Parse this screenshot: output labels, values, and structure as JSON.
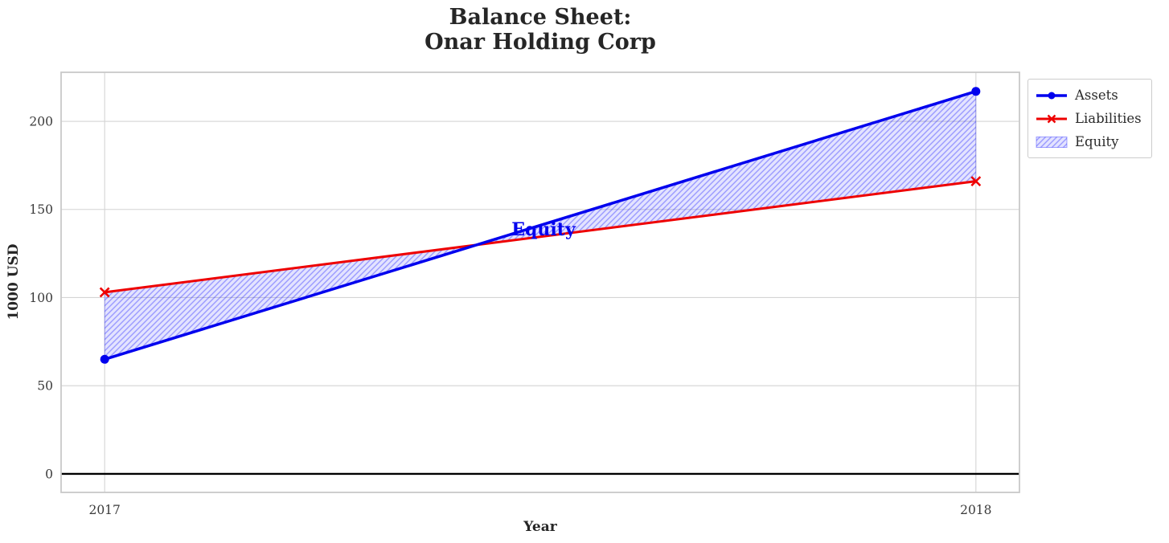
{
  "figure": {
    "title": "Balance Sheet:\nOnar Holding Corp",
    "xlabel": "Year",
    "ylabel": "1000 USD"
  },
  "legend": {
    "items": [
      {
        "label": "Assets"
      },
      {
        "label": "Liabilities"
      },
      {
        "label": "Equity"
      }
    ]
  },
  "annotation": {
    "text": "Equity",
    "color": "#0000ee"
  },
  "colors": {
    "assets": "#0000ee",
    "liabilities": "#ee0000",
    "equity_face": "rgba(0,0,255,0.11)",
    "equity_hatch": "rgba(0,0,255,0.32)",
    "grid": "#d4d4d4",
    "spine": "#c9c9c9",
    "zero_line": "#000000",
    "tick_text": "#3a3a3a"
  },
  "chart_data": {
    "type": "line",
    "title": "Balance Sheet:\nOnar Holding Corp",
    "xlabel": "Year",
    "ylabel": "1000 USD",
    "x": [
      2017,
      2018
    ],
    "series": [
      {
        "name": "Assets",
        "values": [
          65,
          217
        ],
        "color": "#0000ee",
        "marker": "circle",
        "linewidth": 3.5
      },
      {
        "name": "Liabilities",
        "values": [
          103,
          166
        ],
        "color": "#ee0000",
        "marker": "x",
        "linewidth": 3
      }
    ],
    "fill_between": {
      "name": "Equity",
      "between": [
        "Assets",
        "Liabilities"
      ],
      "hatch": "//"
    },
    "annotation": {
      "text": "Equity",
      "x": 2017.5,
      "y": 139
    },
    "xticks": [
      2017,
      2018
    ],
    "yticks": [
      0,
      50,
      100,
      150,
      200
    ],
    "xlim": [
      2016.95,
      2018.05
    ],
    "ylim": [
      -10.5,
      227.8
    ],
    "grid": true,
    "zero_line": 0,
    "legend_position": "upper right"
  }
}
